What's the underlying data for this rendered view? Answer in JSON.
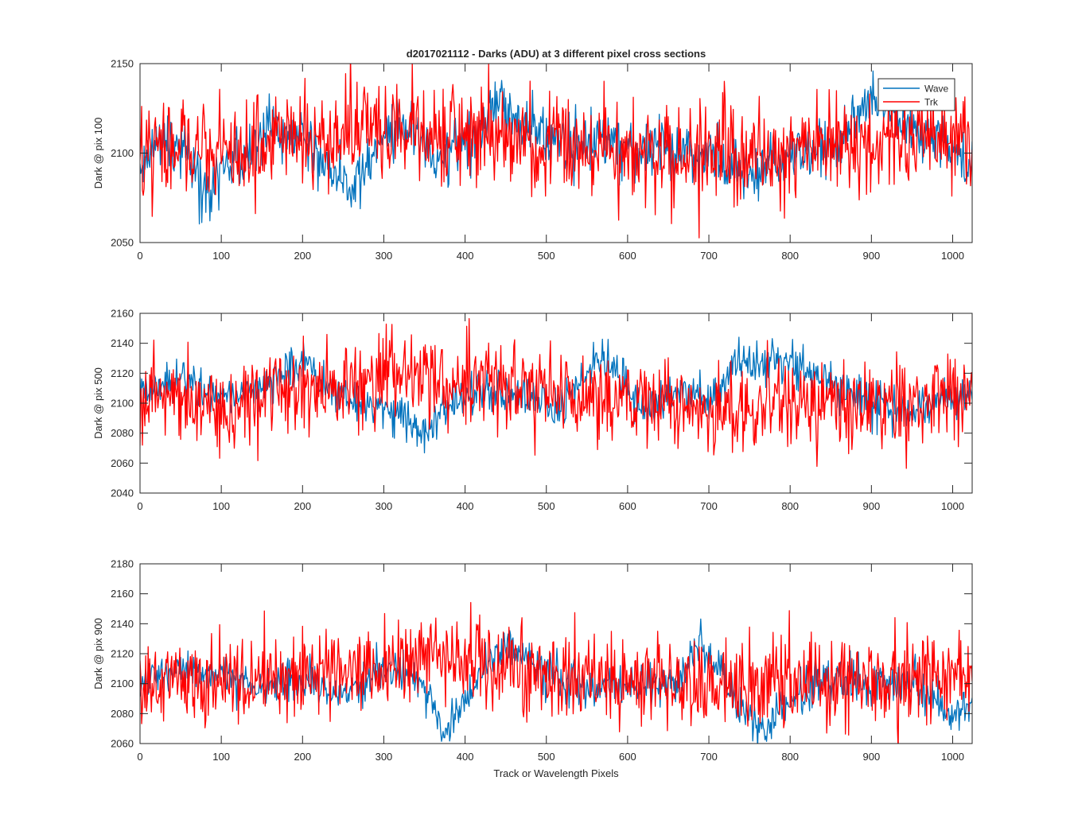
{
  "chart_data": [
    {
      "type": "line",
      "title": "d2017021112 - Darks (ADU) at 3 different pixel cross sections",
      "xlabel": "",
      "ylabel": "Dark @ pix 100",
      "xlim": [
        0,
        1024
      ],
      "ylim": [
        2050,
        2150
      ],
      "xticks": [
        0,
        100,
        200,
        300,
        400,
        500,
        600,
        700,
        800,
        900,
        1000
      ],
      "yticks": [
        2050,
        2100,
        2150
      ],
      "legend": {
        "position": "top-right",
        "entries": [
          "Wave",
          "Trk"
        ]
      },
      "series": [
        {
          "name": "Wave",
          "color": "#0072bd",
          "noise": 8,
          "anchors_x": [
            0,
            30,
            60,
            80,
            100,
            130,
            160,
            200,
            240,
            260,
            280,
            300,
            320,
            340,
            360,
            380,
            400,
            440,
            460,
            500,
            540,
            580,
            620,
            660,
            700,
            740,
            780,
            820,
            860,
            880,
            900,
            940,
            980,
            1024
          ],
          "anchors_y": [
            2090,
            2110,
            2095,
            2075,
            2088,
            2100,
            2115,
            2110,
            2085,
            2080,
            2095,
            2105,
            2118,
            2110,
            2095,
            2100,
            2105,
            2130,
            2120,
            2110,
            2105,
            2110,
            2100,
            2100,
            2095,
            2090,
            2095,
            2100,
            2105,
            2120,
            2130,
            2115,
            2110,
            2095
          ]
        },
        {
          "name": "Trk",
          "color": "#ff0000",
          "noise": 14,
          "anchors_x": [
            0,
            100,
            200,
            300,
            400,
            500,
            600,
            700,
            800,
            900,
            1024
          ],
          "anchors_y": [
            2100,
            2102,
            2108,
            2115,
            2112,
            2105,
            2100,
            2100,
            2102,
            2108,
            2110
          ]
        }
      ]
    },
    {
      "type": "line",
      "title": "",
      "xlabel": "",
      "ylabel": "Dark @ pix 500",
      "xlim": [
        0,
        1024
      ],
      "ylim": [
        2040,
        2160
      ],
      "xticks": [
        0,
        100,
        200,
        300,
        400,
        500,
        600,
        700,
        800,
        900,
        1000
      ],
      "yticks": [
        2040,
        2060,
        2080,
        2100,
        2120,
        2140,
        2160
      ],
      "series": [
        {
          "name": "Wave",
          "color": "#0072bd",
          "noise": 7,
          "anchors_x": [
            0,
            50,
            100,
            150,
            200,
            240,
            280,
            320,
            350,
            380,
            420,
            470,
            520,
            560,
            580,
            620,
            680,
            700,
            740,
            760,
            800,
            820,
            860,
            900,
            940,
            980,
            1024
          ],
          "anchors_y": [
            2105,
            2118,
            2105,
            2110,
            2130,
            2105,
            2100,
            2095,
            2080,
            2100,
            2110,
            2105,
            2100,
            2128,
            2125,
            2095,
            2110,
            2098,
            2130,
            2125,
            2130,
            2122,
            2110,
            2100,
            2095,
            2100,
            2110
          ]
        },
        {
          "name": "Trk",
          "color": "#ff0000",
          "noise": 15,
          "anchors_x": [
            0,
            100,
            200,
            300,
            400,
            500,
            600,
            700,
            800,
            900,
            1024
          ],
          "anchors_y": [
            2105,
            2100,
            2105,
            2118,
            2115,
            2105,
            2100,
            2095,
            2100,
            2100,
            2105
          ]
        }
      ]
    },
    {
      "type": "line",
      "title": "",
      "xlabel": "Track or Wavelength Pixels",
      "ylabel": "Dark @ pix 900",
      "xlim": [
        0,
        1024
      ],
      "ylim": [
        2060,
        2180
      ],
      "xticks": [
        0,
        100,
        200,
        300,
        400,
        500,
        600,
        700,
        800,
        900,
        1000
      ],
      "yticks": [
        2060,
        2080,
        2100,
        2120,
        2140,
        2160,
        2180
      ],
      "series": [
        {
          "name": "Wave",
          "color": "#0072bd",
          "noise": 7,
          "anchors_x": [
            0,
            40,
            100,
            150,
            200,
            250,
            300,
            340,
            360,
            380,
            420,
            450,
            500,
            560,
            600,
            660,
            690,
            720,
            770,
            800,
            850,
            900,
            950,
            1000,
            1024
          ],
          "anchors_y": [
            2100,
            2110,
            2105,
            2095,
            2105,
            2090,
            2110,
            2105,
            2085,
            2070,
            2105,
            2125,
            2110,
            2095,
            2100,
            2100,
            2128,
            2100,
            2068,
            2090,
            2105,
            2100,
            2100,
            2080,
            2085
          ]
        },
        {
          "name": "Trk",
          "color": "#ff0000",
          "noise": 15,
          "anchors_x": [
            0,
            100,
            200,
            300,
            330,
            400,
            500,
            600,
            700,
            800,
            900,
            1024
          ],
          "anchors_y": [
            2100,
            2102,
            2105,
            2112,
            2120,
            2115,
            2108,
            2100,
            2098,
            2100,
            2102,
            2105
          ]
        }
      ]
    }
  ]
}
